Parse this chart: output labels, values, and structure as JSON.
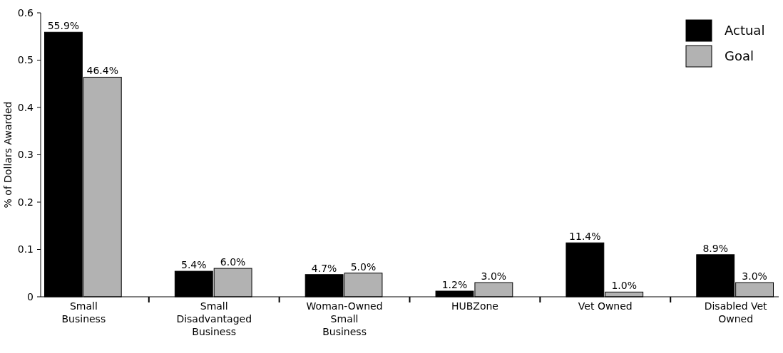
{
  "chart_data": {
    "type": "bar",
    "ylabel": "% of Dollars Awarded",
    "categories": [
      "Small Business",
      "Small Disadvantaged Business",
      "Woman-Owned Small Business",
      "HUBZone",
      "Vet Owned",
      "Disabled Vet Owned"
    ],
    "series": [
      {
        "name": "Actual",
        "color": "#000000",
        "values": [
          0.559,
          0.054,
          0.047,
          0.012,
          0.114,
          0.089
        ],
        "value_labels": [
          "55.9%",
          "5.4%",
          "4.7%",
          "1.2%",
          "11.4%",
          "8.9%"
        ]
      },
      {
        "name": "Goal",
        "color": "#b2b2b2",
        "values": [
          0.464,
          0.06,
          0.05,
          0.03,
          0.01,
          0.03
        ],
        "value_labels": [
          "46.4%",
          "6.0%",
          "5.0%",
          "3.0%",
          "1.0%",
          "3.0%"
        ]
      }
    ],
    "ylim": [
      0,
      0.6
    ],
    "yticks": [
      0,
      0.1,
      0.2,
      0.3,
      0.4,
      0.5,
      0.6
    ],
    "grid": false,
    "legend": "top right"
  }
}
